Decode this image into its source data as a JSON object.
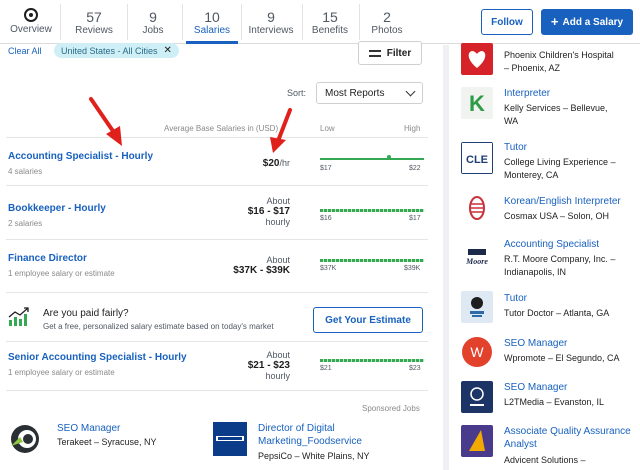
{
  "nav": {
    "overview_label": "Overview",
    "tabs": [
      {
        "count": "57",
        "label": "Reviews"
      },
      {
        "count": "9",
        "label": "Jobs"
      },
      {
        "count": "10",
        "label": "Salaries"
      },
      {
        "count": "9",
        "label": "Interviews"
      },
      {
        "count": "15",
        "label": "Benefits"
      },
      {
        "count": "2",
        "label": "Photos"
      }
    ],
    "active_tab": "Salaries",
    "follow_label": "Follow",
    "add_salary_label": "Add a Salary"
  },
  "filters": {
    "clear_all": "Clear All",
    "chip_label": "United States - All Cities",
    "filter_label": "Filter",
    "sort_label": "Sort:",
    "sort_value": "Most Reports"
  },
  "table_header": {
    "avg_label": "Average Base Salaries in (USD)",
    "low": "Low",
    "high": "High"
  },
  "salaries": [
    {
      "title": "Accounting Specialist - Hourly",
      "sub": "4 salaries",
      "pay_prefix": "",
      "pay": "$20",
      "pay_unit": "/hr",
      "pay_suffix": "",
      "low": "$17",
      "high": "$22",
      "style": "solid"
    },
    {
      "title": "Bookkeeper - Hourly",
      "sub": "2 salaries",
      "pay_prefix": "About",
      "pay": "$16 - $17",
      "pay_unit": "",
      "pay_suffix": "hourly",
      "low": "$16",
      "high": "$17",
      "style": "dashed"
    },
    {
      "title": "Finance Director",
      "sub": "1 employee salary or estimate",
      "pay_prefix": "About",
      "pay": "$37K - $39K",
      "pay_unit": "",
      "pay_suffix": "",
      "low": "$37K",
      "high": "$39K",
      "style": "dashed"
    },
    {
      "title": "Senior Accounting Specialist - Hourly",
      "sub": "1 employee salary or estimate",
      "pay_prefix": "About",
      "pay": "$21 - $23",
      "pay_unit": "",
      "pay_suffix": "hourly",
      "low": "$21",
      "high": "$23",
      "style": "dashed"
    }
  ],
  "fair_pay": {
    "title": "Are you paid fairly?",
    "sub": "Get a free, personalized salary estimate based on today's market",
    "button": "Get Your Estimate"
  },
  "sponsored": {
    "label": "Sponsored Jobs",
    "jobs": [
      {
        "title": "SEO Manager",
        "company": "Terakeet – Syracuse, NY"
      },
      {
        "title_line1": "Director of Digital",
        "title_line2": "Marketing_Foodservice",
        "company": "PepsiCo – White Plains, NY"
      }
    ]
  },
  "sidebar": [
    {
      "title": "",
      "line1": "Phoenix Children's Hospital",
      "line2": "– Phoenix, AZ",
      "logo": "phoenix-childrens-logo",
      "color": "#d6232a"
    },
    {
      "title": "Interpreter",
      "line1": "Kelly Services – Bellevue,",
      "line2": "WA",
      "logo": "kelly-services-logo",
      "color": "#2e9c46"
    },
    {
      "title": "Tutor",
      "line1": "College Living Experience –",
      "line2": "Monterey, CA",
      "logo": "cle-logo",
      "color": "#1f3f73"
    },
    {
      "title": "Korean/English Interpreter",
      "line1": "Cosmax USA – Solon, OH",
      "line2": "",
      "logo": "cosmax-logo",
      "color": "#c8323a"
    },
    {
      "title": "Accounting Specialist",
      "line1": "R.T. Moore Company, Inc. –",
      "line2": "Indianapolis, IN",
      "logo": "rt-moore-logo",
      "color": "#1b2a4a"
    },
    {
      "title": "Tutor",
      "line1": "Tutor Doctor – Atlanta, GA",
      "line2": "",
      "logo": "tutor-doctor-logo",
      "color": "#2d6aa8"
    },
    {
      "title": "SEO Manager",
      "line1": "Wpromote – El Segundo, CA",
      "line2": "",
      "logo": "wpromote-logo",
      "color": "#e2412c"
    },
    {
      "title": "SEO Manager",
      "line1": "L2TMedia – Evanston, IL",
      "line2": "",
      "logo": "l2tmedia-logo",
      "color": "#1c3566"
    },
    {
      "title_line1": "Associate Quality Assurance",
      "title_line2": "Analyst",
      "line1": "Advicent Solutions –",
      "line2": "",
      "logo": "advicent-logo",
      "color": "#4a3a8c"
    }
  ],
  "colors": {
    "brand_blue": "#1861bf",
    "range_green": "#34a853",
    "annotation_red": "#e0201b"
  }
}
